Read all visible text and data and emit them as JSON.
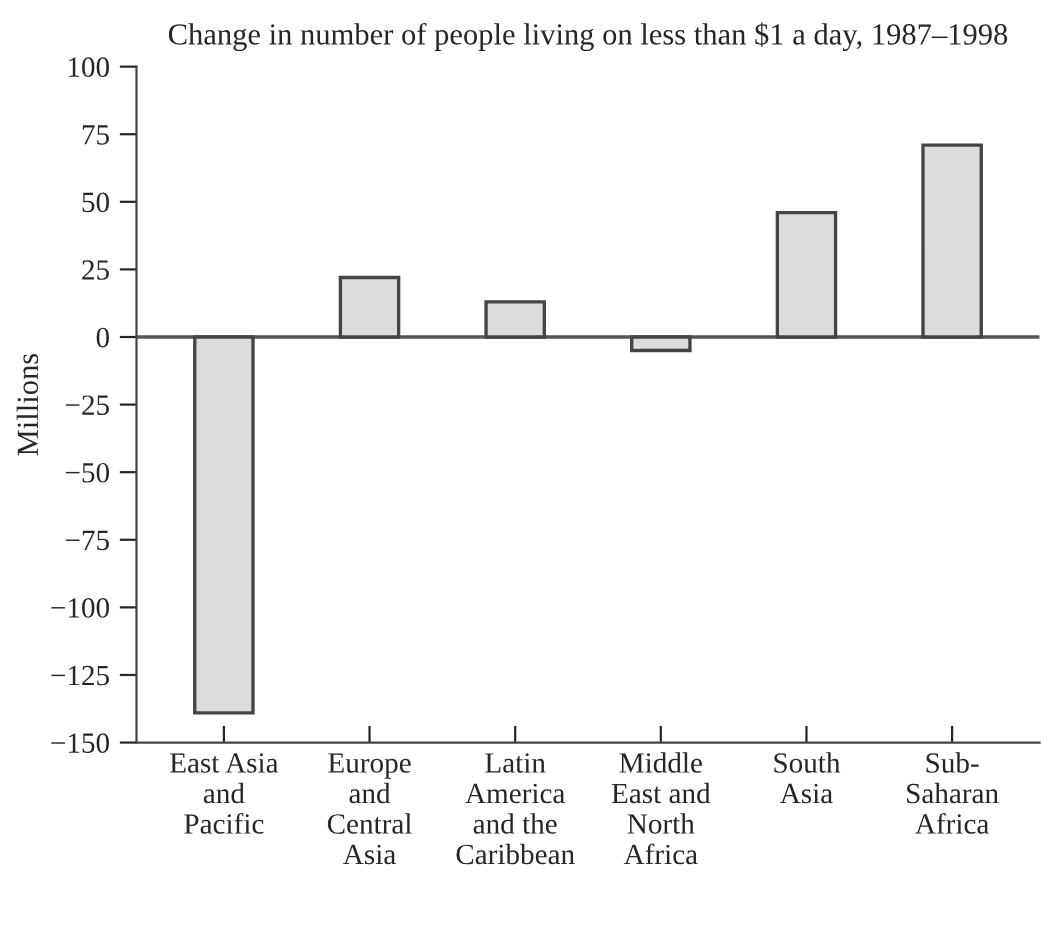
{
  "chart_data": {
    "type": "bar",
    "title": "Change in number of people living on less than $1 a day, 1987–1998",
    "ylabel": "Millions",
    "categories": [
      "East Asia\nand\nPacific",
      "Europe\nand\nCentral\nAsia",
      "Latin\nAmerica\nand the\nCaribbean",
      "Middle\nEast and\nNorth\nAfrica",
      "South\nAsia",
      "Sub-\nSaharan\nAfrica"
    ],
    "values": [
      -139,
      22,
      13,
      -5,
      46,
      71
    ],
    "color": "#dcdcdc",
    "ylim": [
      -150,
      100
    ],
    "yticks": [
      {
        "value": -150,
        "label": "−150"
      },
      {
        "value": -125,
        "label": "−125"
      },
      {
        "value": -100,
        "label": "−100"
      },
      {
        "value": -75,
        "label": "−75"
      },
      {
        "value": -50,
        "label": "−50"
      },
      {
        "value": -25,
        "label": "−25"
      },
      0,
      25,
      50,
      75,
      100
    ],
    "ref_lines": [
      {
        "axis": "y",
        "value": 0,
        "color": "#555555"
      }
    ],
    "grid": false,
    "legend": false
  }
}
